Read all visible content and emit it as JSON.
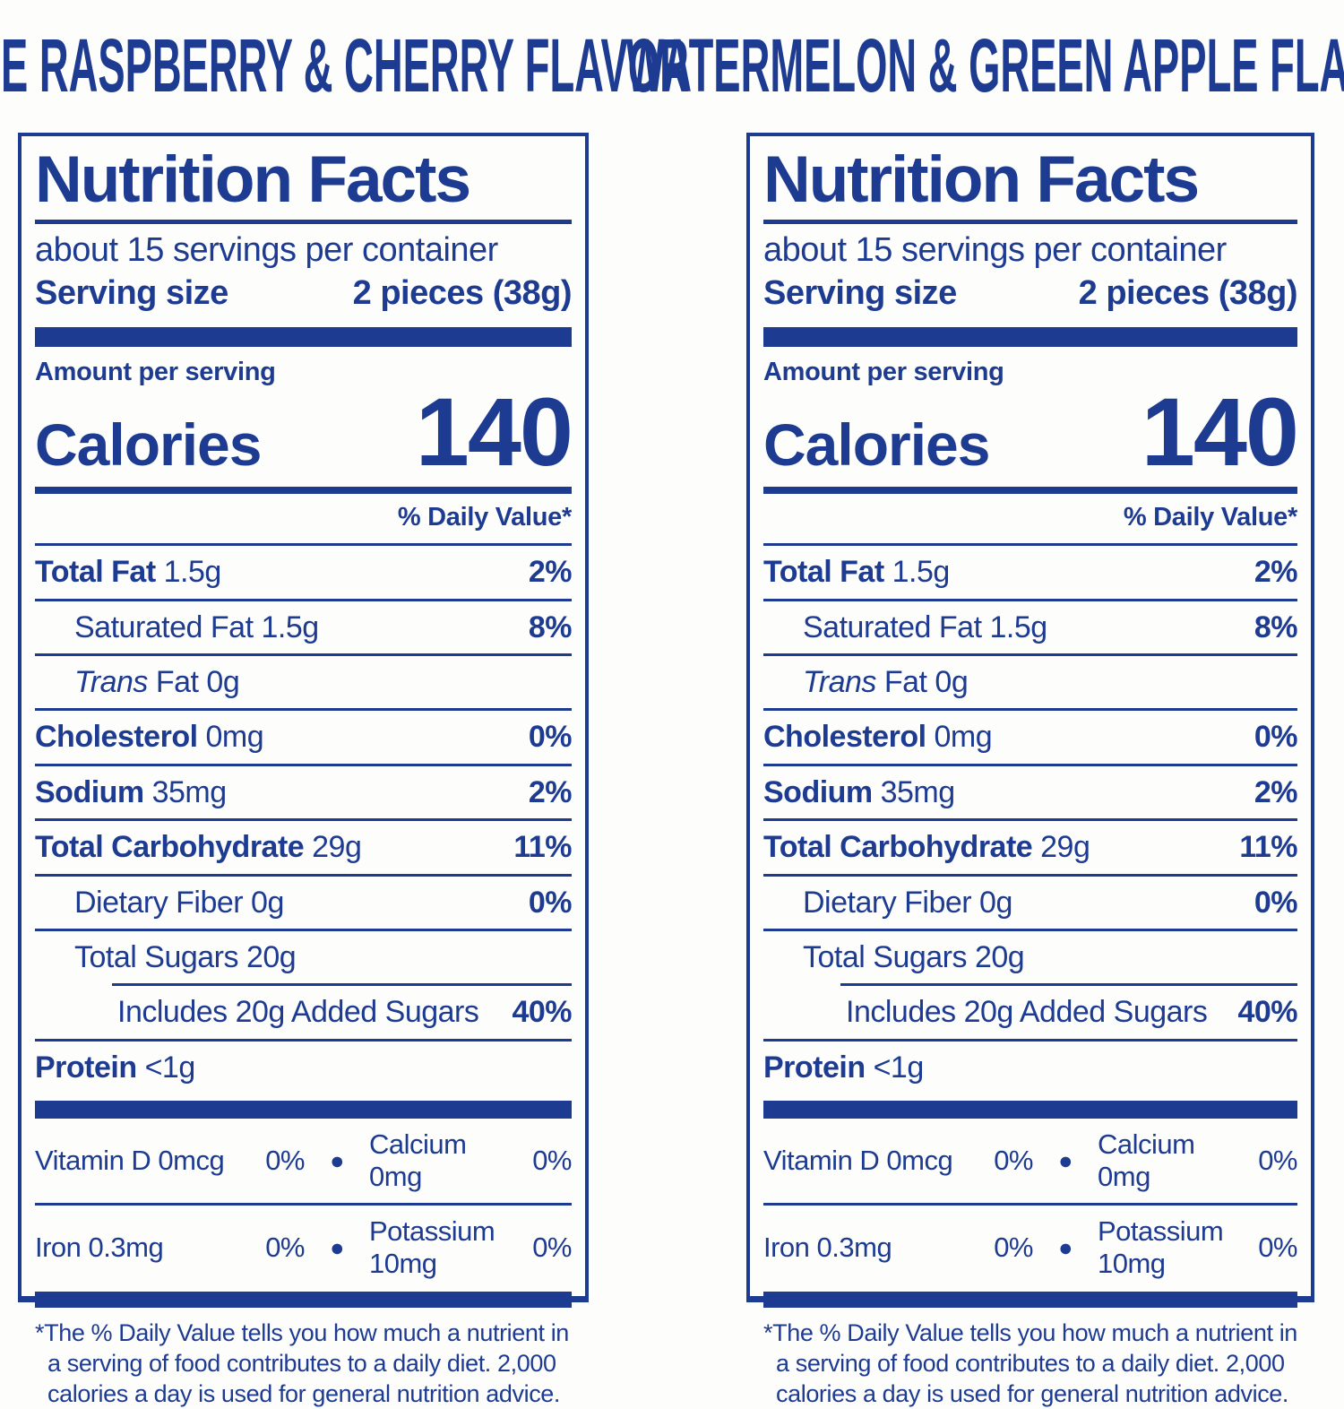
{
  "brand_color": "#1e3b92",
  "labels": [
    {
      "flavor_title": "BLUE RASPBERRY & CHERRY FLAVOR",
      "header": {
        "title": "Nutrition Facts",
        "servings_per_container": "about 15 servings per container",
        "serving_size_label": "Serving size",
        "serving_size_value": "2 pieces (38g)"
      },
      "calories": {
        "amount_per_serving_label": "Amount per serving",
        "label": "Calories",
        "value": "140"
      },
      "daily_value_header": "% Daily Value*",
      "nutrient_rows": [
        {
          "name": "Total Fat",
          "value": "1.5g",
          "dv": "2%",
          "bold": true,
          "indent": 0
        },
        {
          "name": "Saturated Fat",
          "value": "1.5g",
          "dv": "8%",
          "bold": false,
          "indent": 1
        },
        {
          "name_italic_prefix": "Trans",
          "name": "Fat",
          "value": "0g",
          "dv": "",
          "bold": false,
          "indent": 1
        },
        {
          "name": "Cholesterol",
          "value": "0mg",
          "dv": "0%",
          "bold": true,
          "indent": 0
        },
        {
          "name": "Sodium",
          "value": "35mg",
          "dv": "2%",
          "bold": true,
          "indent": 0
        },
        {
          "name": "Total Carbohydrate",
          "value": "29g",
          "dv": "11%",
          "bold": true,
          "indent": 0
        },
        {
          "name": "Dietary Fiber",
          "value": "0g",
          "dv": "0%",
          "bold": false,
          "indent": 1
        },
        {
          "name": "Total Sugars",
          "value": "20g",
          "dv": "",
          "bold": false,
          "indent": 1
        },
        {
          "name": "Includes 20g Added Sugars",
          "value": "",
          "dv": "40%",
          "bold": false,
          "indent": 2,
          "rule_indent": true
        },
        {
          "name": "Protein",
          "value": "<1g",
          "dv": "",
          "bold": true,
          "indent": 0
        }
      ],
      "micronutrient_rows": [
        {
          "left_name": "Vitamin D 0mcg",
          "left_dv": "0%",
          "bullet": "●",
          "right_name": "Calcium 0mg",
          "right_dv": "0%"
        },
        {
          "left_name": "Iron 0.3mg",
          "left_dv": "0%",
          "bullet": "●",
          "right_name": "Potassium 10mg",
          "right_dv": "0%"
        }
      ],
      "footnote": "*The % Daily Value tells you how much a nutrient in a serving of food contributes to a daily diet. 2,000 calories a day is used for general nutrition advice."
    },
    {
      "flavor_title": "WATERMELON & GREEN APPLE FLAVOR",
      "header": {
        "title": "Nutrition Facts",
        "servings_per_container": "about 15 servings per container",
        "serving_size_label": "Serving size",
        "serving_size_value": "2 pieces (38g)"
      },
      "calories": {
        "amount_per_serving_label": "Amount per serving",
        "label": "Calories",
        "value": "140"
      },
      "daily_value_header": "% Daily Value*",
      "nutrient_rows": [
        {
          "name": "Total Fat",
          "value": "1.5g",
          "dv": "2%",
          "bold": true,
          "indent": 0
        },
        {
          "name": "Saturated Fat",
          "value": "1.5g",
          "dv": "8%",
          "bold": false,
          "indent": 1
        },
        {
          "name_italic_prefix": "Trans",
          "name": "Fat",
          "value": "0g",
          "dv": "",
          "bold": false,
          "indent": 1
        },
        {
          "name": "Cholesterol",
          "value": "0mg",
          "dv": "0%",
          "bold": true,
          "indent": 0
        },
        {
          "name": "Sodium",
          "value": "35mg",
          "dv": "2%",
          "bold": true,
          "indent": 0
        },
        {
          "name": "Total Carbohydrate",
          "value": "29g",
          "dv": "11%",
          "bold": true,
          "indent": 0
        },
        {
          "name": "Dietary Fiber",
          "value": "0g",
          "dv": "0%",
          "bold": false,
          "indent": 1
        },
        {
          "name": "Total Sugars",
          "value": "20g",
          "dv": "",
          "bold": false,
          "indent": 1
        },
        {
          "name": "Includes 20g Added Sugars",
          "value": "",
          "dv": "40%",
          "bold": false,
          "indent": 2,
          "rule_indent": true
        },
        {
          "name": "Protein",
          "value": "<1g",
          "dv": "",
          "bold": true,
          "indent": 0
        }
      ],
      "micronutrient_rows": [
        {
          "left_name": "Vitamin D 0mcg",
          "left_dv": "0%",
          "bullet": "●",
          "right_name": "Calcium 0mg",
          "right_dv": "0%"
        },
        {
          "left_name": "Iron 0.3mg",
          "left_dv": "0%",
          "bullet": "●",
          "right_name": "Potassium 10mg",
          "right_dv": "0%"
        }
      ],
      "footnote": "*The % Daily Value tells you how much a nutrient in a serving of food contributes to a daily diet. 2,000 calories a day is used for general nutrition advice."
    }
  ]
}
